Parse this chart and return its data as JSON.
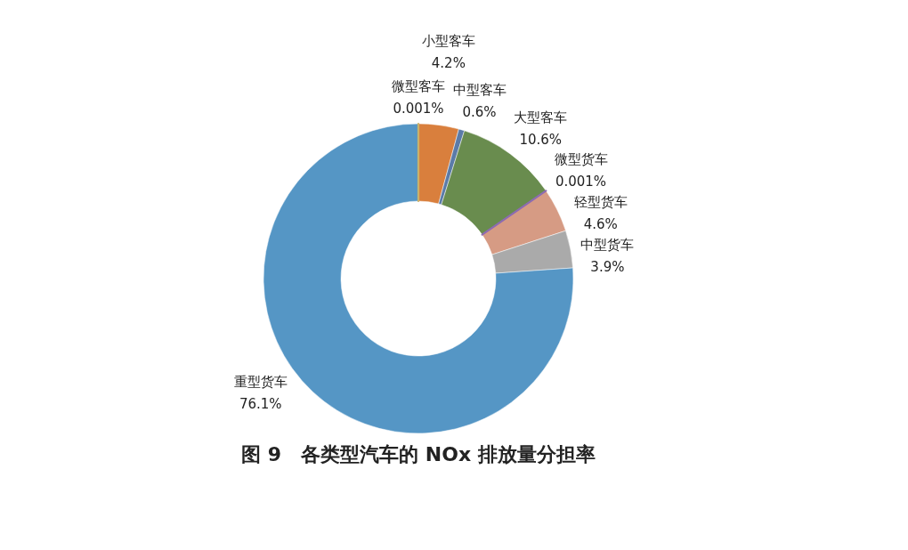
{
  "chart_data": {
    "type": "donut",
    "title": "图 9　各类型汽车的 NOx 排放量分担率",
    "categories": [
      "微型客车",
      "小型客车",
      "中型客车",
      "大型客车",
      "微型货车",
      "轻型货车",
      "中型货车",
      "重型货车"
    ],
    "values": [
      0.001,
      4.2,
      0.6,
      10.6,
      0.001,
      4.6,
      3.9,
      76.1
    ],
    "value_labels": [
      "0.001%",
      "4.2%",
      "0.6%",
      "10.6%",
      "0.001%",
      "4.6%",
      "3.9%",
      "76.1%"
    ],
    "colors": [
      "#c9b26b",
      "#d97f3d",
      "#5b7ba8",
      "#698c4e",
      "#8c6bb1",
      "#d69b84",
      "#aaaaaa",
      "#5596c5"
    ]
  }
}
